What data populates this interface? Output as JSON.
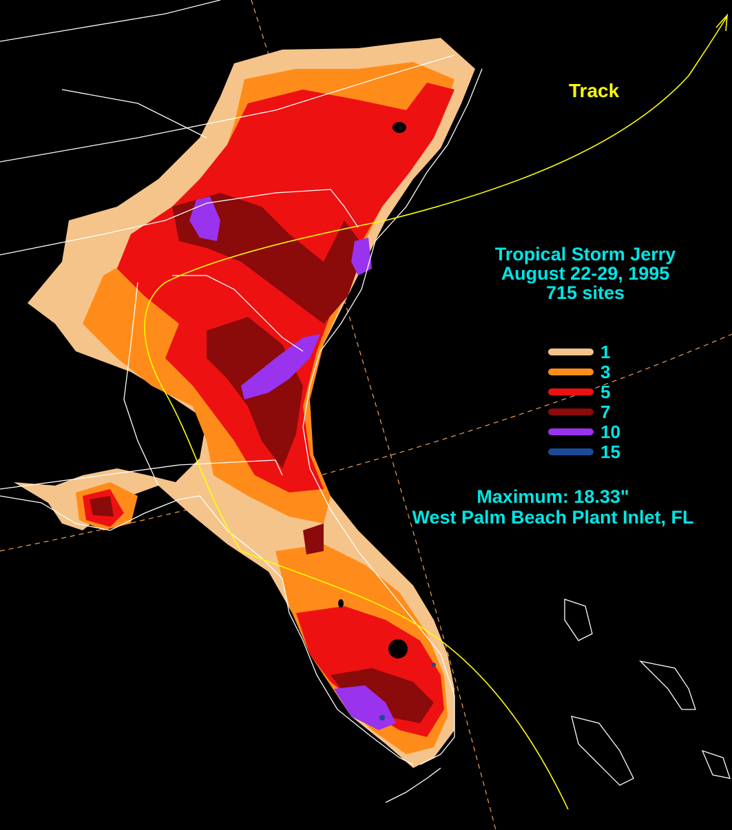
{
  "colors": {
    "background": "#000000",
    "state_border": "#ffffff",
    "coast": "#ffffff",
    "track": "#ffff00",
    "title_text": "#00e6e6",
    "track_text": "#ffff00",
    "grid": "#f0a060"
  },
  "track": {
    "label": "Track",
    "arrow_icon": "arrow-head-icon"
  },
  "title": {
    "line1": "Tropical Storm Jerry",
    "line2": "August 22-29, 1995",
    "line3": "715 sites"
  },
  "legend": {
    "items": [
      {
        "value": "1",
        "color": "#f5c48a"
      },
      {
        "value": "3",
        "color": "#ff8c1a"
      },
      {
        "value": "5",
        "color": "#ee1111"
      },
      {
        "value": "7",
        "color": "#8b0a0a"
      },
      {
        "value": "10",
        "color": "#9933ee"
      },
      {
        "value": "15",
        "color": "#1a4a99"
      }
    ]
  },
  "maximum": {
    "line1": "Maximum:  18.33\"",
    "line2": "West Palm Beach Plant Inlet, FL"
  }
}
